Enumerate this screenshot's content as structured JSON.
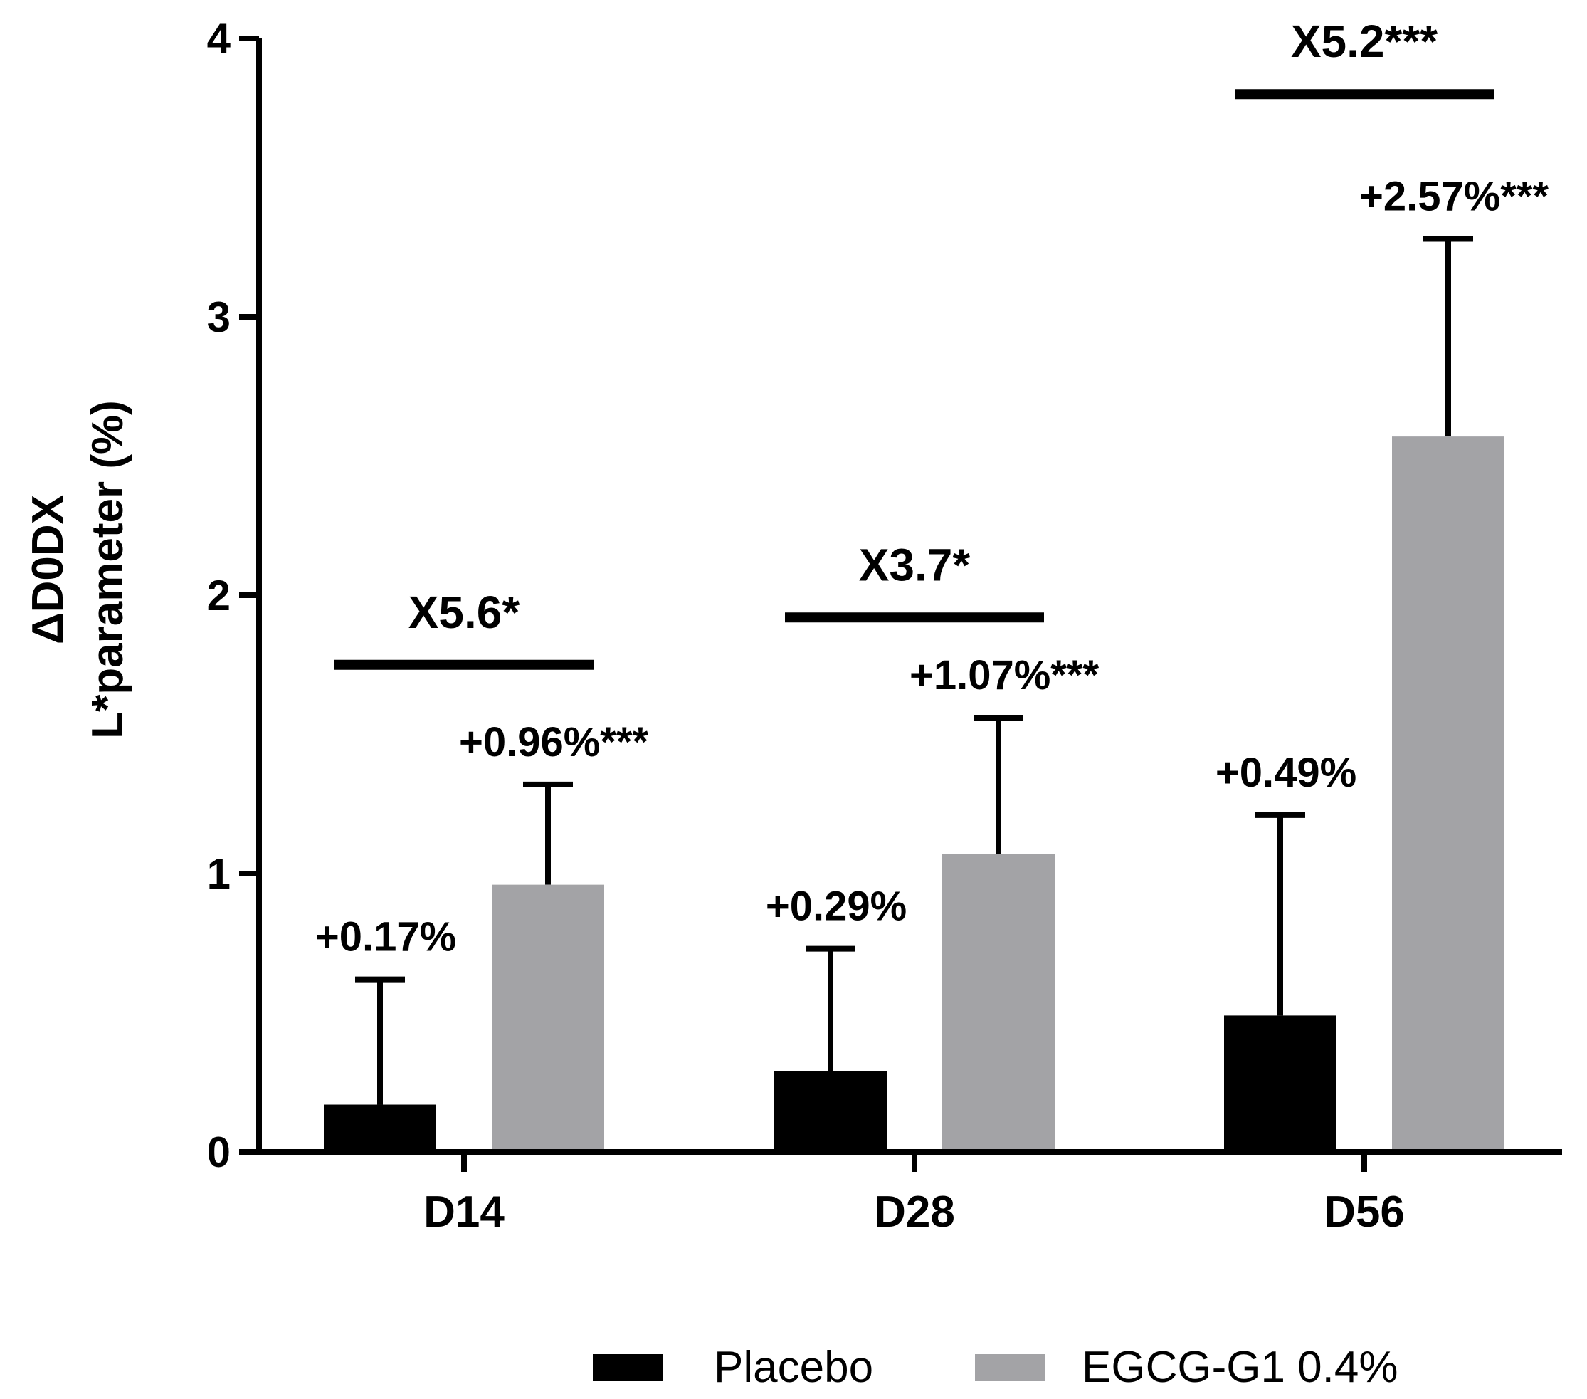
{
  "chart_data": {
    "type": "bar",
    "title": "",
    "xlabel": "",
    "ylabel_lines": [
      "ΔD0DX",
      "L*parameter (%)"
    ],
    "ylim": [
      0,
      4
    ],
    "yticks": [
      0,
      1,
      2,
      3,
      4
    ],
    "categories": [
      "D14",
      "D28",
      "D56"
    ],
    "series": [
      {
        "name": "Placebo",
        "color": "#000000",
        "values": [
          0.17,
          0.29,
          0.49
        ],
        "error_upper": [
          0.62,
          0.73,
          1.21
        ],
        "labels": [
          "+0.17%",
          "+0.29%",
          "+0.49%"
        ]
      },
      {
        "name": "EGCG-G1 0.4%",
        "color": "#a3a3a6",
        "values": [
          0.96,
          1.07,
          2.57
        ],
        "error_upper": [
          1.32,
          1.56,
          3.28
        ],
        "labels": [
          "+0.96%***",
          "+1.07%***",
          "+2.57%***"
        ]
      }
    ],
    "comparisons": [
      {
        "category": "D14",
        "label": "X5.6*",
        "level": 1.75
      },
      {
        "category": "D28",
        "label": "X3.7*",
        "level": 1.92
      },
      {
        "category": "D56",
        "label": "X5.2***",
        "level": 3.8
      }
    ],
    "legend_position": "bottom"
  }
}
